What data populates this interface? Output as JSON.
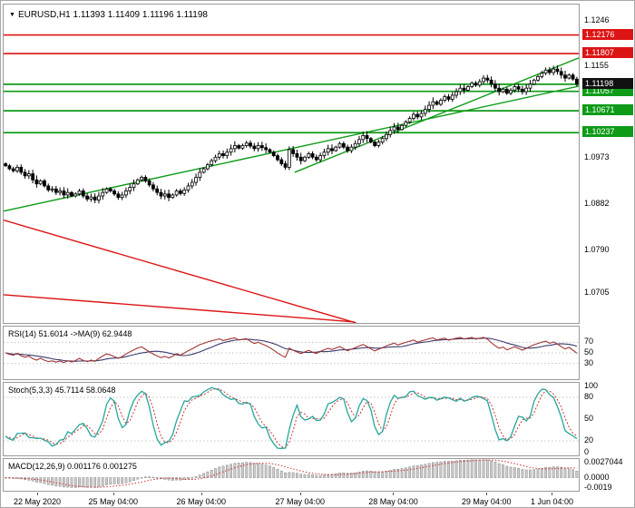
{
  "header": {
    "title": "EURUSD,H1 1.11393 1.11409 1.11196 1.11198"
  },
  "colors": {
    "red": "#dd1414",
    "green": "#0e9b18",
    "price_badge": "#111111",
    "candle": "#000000",
    "rsi_line": "#a23535",
    "rsi_ma": "#3c3c6e",
    "stoch_k": "#26a69a",
    "stoch_d": "#cc3333",
    "macd_bar": "#cfcfcf",
    "macd_bar_edge": "#808080",
    "macd_signal": "#cc3333",
    "level_line": "#c4c4c4"
  },
  "chart_data": {
    "type": "candlestick",
    "symbol": "EURUSD",
    "timeframe": "H1",
    "title": "EURUSD,H1 1.11393 1.11409 1.11196 1.11198",
    "ohlc_display": {
      "open": "1.11393",
      "high": "1.11409",
      "low": "1.11196",
      "close": "1.11198"
    },
    "price_axis": {
      "min": 1.0646,
      "max": 1.1278,
      "visible_labels": [
        "1.1246",
        "1.1155",
        "1.0973",
        "1.0882",
        "1.0790",
        "1.0705"
      ]
    },
    "time_axis": {
      "labels": [
        "22 May 2020",
        "25 May 04:00",
        "26 May 04:00",
        "27 May 04:00",
        "28 May 04:00",
        "29 May 04:00",
        "1 Jun 04:00"
      ],
      "positions": [
        0.06,
        0.192,
        0.345,
        0.517,
        0.679,
        0.841,
        0.955
      ]
    },
    "horizontal_lines": [
      {
        "price": 1.12176,
        "color": "red",
        "label": "1.12176"
      },
      {
        "price": 1.11807,
        "color": "red",
        "label": "1.11807"
      },
      {
        "price": 1.11198,
        "color": "green",
        "label": null
      },
      {
        "price": 1.11057,
        "color": "green",
        "label": "1.11057"
      },
      {
        "price": 1.10671,
        "color": "green",
        "label": "1.10671"
      },
      {
        "price": 1.10237,
        "color": "green",
        "label": "1.10237"
      }
    ],
    "current_price": {
      "label": "1.11198",
      "value": 1.11198
    },
    "trendlines": [
      {
        "x1": 0.0,
        "p1": 1.0868,
        "x2": 1.0,
        "p2": 1.1116,
        "color": "green"
      },
      {
        "x1": 0.506,
        "p1": 1.0945,
        "x2": 1.0,
        "p2": 1.1172,
        "color": "green"
      },
      {
        "x1": 0.0,
        "p1": 1.085,
        "x2": 0.613,
        "p2": 1.0646,
        "color": "red"
      },
      {
        "x1": 0.0,
        "p1": 1.0702,
        "x2": 0.61,
        "p2": 1.0648,
        "color": "red"
      }
    ],
    "candles": {
      "first_open": 1.0962,
      "closes": [
        1.0958,
        1.0952,
        1.0948,
        1.0955,
        1.0945,
        1.0938,
        1.0942,
        1.093,
        1.0922,
        1.0928,
        1.0918,
        1.091,
        1.0912,
        1.0905,
        1.0908,
        1.09,
        1.0905,
        1.0898,
        1.0902,
        1.0908,
        1.0898,
        1.0892,
        1.0896,
        1.089,
        1.0898,
        1.0905,
        1.0912,
        1.0908,
        1.0902,
        1.0895,
        1.09,
        1.0908,
        1.0915,
        1.0922,
        1.093,
        1.0935,
        1.0928,
        1.092,
        1.0912,
        1.0905,
        1.0898,
        1.0902,
        1.0895,
        1.09,
        1.0908,
        1.0903,
        1.091,
        1.0918,
        1.0925,
        1.0935,
        1.0945,
        1.0952,
        1.096,
        1.0968,
        1.0975,
        1.0982,
        1.0978,
        1.0985,
        1.0992,
        1.0998,
        1.0993,
        1.0998,
        1.1003,
        1.0997,
        1.0992,
        1.0998,
        1.0994,
        1.099,
        1.0985,
        1.0978,
        1.097,
        1.0962,
        1.0955,
        1.099,
        1.0982,
        1.0975,
        1.0968,
        1.0975,
        1.0982,
        1.0975,
        1.097,
        1.0978,
        1.0985,
        1.0992,
        1.0988,
        1.0995,
        1.1002,
        1.0995,
        1.0988,
        1.0995,
        1.1002,
        1.101,
        1.1018,
        1.1012,
        1.1005,
        1.0998,
        1.1005,
        1.1012,
        1.102,
        1.1028,
        1.1035,
        1.103,
        1.1038,
        1.1045,
        1.1052,
        1.106,
        1.1055,
        1.1062,
        1.107,
        1.1078,
        1.1085,
        1.108,
        1.1088,
        1.1095,
        1.109,
        1.1098,
        1.1105,
        1.1112,
        1.1108,
        1.1115,
        1.1122,
        1.1118,
        1.1125,
        1.1132,
        1.1128,
        1.112,
        1.1112,
        1.1105,
        1.111,
        1.1102,
        1.1108,
        1.1115,
        1.111,
        1.1105,
        1.1112,
        1.112,
        1.1128,
        1.1135,
        1.1142,
        1.1148,
        1.1143,
        1.115,
        1.1145,
        1.1138,
        1.1132,
        1.1138,
        1.113,
        1.11198
      ]
    },
    "indicators": [
      {
        "id": "rsi",
        "label": "RSI(14) 51.6014  ->MA(9) 62.9448",
        "values_display": [
          "51.6014",
          "62.9448"
        ],
        "axis_labels": [
          70,
          50,
          30
        ],
        "level_lines": [
          70,
          50,
          30
        ],
        "range": [
          0,
          100
        ]
      },
      {
        "id": "stoch",
        "label": "Stoch(5,3,3) 45.7114 58.0648",
        "values_display": [
          "45.7114",
          "58.0648"
        ],
        "axis_labels": [
          100,
          80,
          50,
          20,
          0
        ],
        "level_lines": [
          80,
          20
        ],
        "range": [
          0,
          100
        ]
      },
      {
        "id": "macd",
        "label": "MACD(12,26,9) 0.001176 0.001275",
        "values_display": [
          "0.001176",
          "0.001275"
        ],
        "axis_labels": [
          {
            "text": "0.0027044",
            "value": 0.0027044
          },
          {
            "text": "0.0000",
            "value": 0
          },
          {
            "text": "-0.0019",
            "value": -0.0019
          }
        ],
        "range": [
          -0.0019,
          0.0027044
        ]
      }
    ]
  }
}
